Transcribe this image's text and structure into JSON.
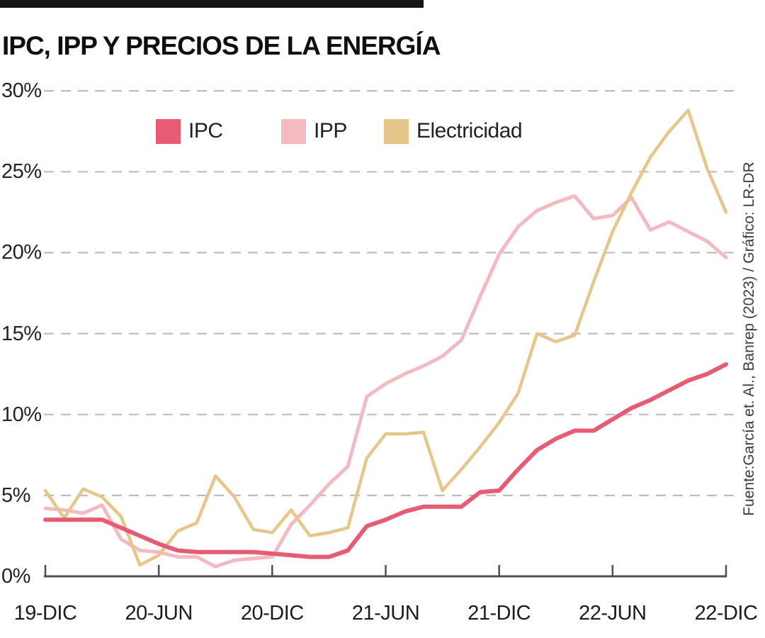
{
  "header": {
    "title": "IPC, IPP Y PRECIOS DE LA ENERGÍA"
  },
  "source_note": "Fuente:García et. Al., Banrep (2023) / Gráfico: LR-DR",
  "colors": {
    "top_bar": "#161616",
    "grid": "#bdbdbd",
    "axis": "#4f4f4f",
    "ipc": "#e65d73",
    "ipp": "#f3bac2",
    "electricidad": "#e7c689"
  },
  "chart_data": {
    "type": "line",
    "title": "IPC, IPP Y PRECIOS DE LA ENERGÍA",
    "unit": "%",
    "ylim": [
      0,
      30
    ],
    "grid": "horizontal-dashed",
    "legend_position": "top-inside",
    "y_axis_ticks": [
      "0%",
      "5%",
      "10%",
      "15%",
      "20%",
      "25%",
      "30%"
    ],
    "x_axis_ticks": [
      "19-DIC",
      "20-JUN",
      "20-DIC",
      "21-JUN",
      "21-DIC",
      "22-JUN",
      "22-DIC"
    ],
    "x": [
      "dic-19",
      "ene-20",
      "feb-20",
      "mar-20",
      "abr-20",
      "may-20",
      "jun-20",
      "jul-20",
      "ago-20",
      "sep-20",
      "oct-20",
      "nov-20",
      "dic-20",
      "ene-21",
      "feb-21",
      "mar-21",
      "abr-21",
      "may-21",
      "jun-21",
      "jul-21",
      "ago-21",
      "sep-21",
      "oct-21",
      "nov-21",
      "dic-21",
      "ene-22",
      "feb-22",
      "mar-22",
      "abr-22",
      "may-22",
      "jun-22",
      "jul-22",
      "ago-22",
      "sep-22",
      "oct-22",
      "nov-22",
      "dic-22"
    ],
    "series": [
      {
        "name": "IPC",
        "color": "#e65d73",
        "values": [
          3.5,
          3.5,
          3.5,
          3.5,
          3.0,
          2.5,
          2.0,
          1.6,
          1.5,
          1.5,
          1.5,
          1.5,
          1.4,
          1.3,
          1.2,
          1.2,
          1.6,
          3.1,
          3.5,
          4.0,
          4.3,
          4.3,
          4.3,
          5.2,
          5.3,
          6.6,
          7.8,
          8.5,
          9.0,
          9.0,
          9.7,
          10.4,
          10.9,
          11.5,
          12.1,
          12.5,
          13.1
        ]
      },
      {
        "name": "IPP",
        "color": "#f3bac2",
        "values": [
          4.2,
          4.1,
          3.9,
          4.4,
          2.3,
          1.6,
          1.5,
          1.2,
          1.2,
          0.6,
          1.0,
          1.1,
          1.2,
          3.2,
          4.4,
          5.7,
          6.8,
          11.1,
          11.9,
          12.5,
          13.0,
          13.6,
          14.6,
          17.3,
          19.9,
          21.6,
          22.6,
          23.1,
          23.5,
          22.1,
          22.3,
          23.4,
          21.4,
          21.9,
          21.3,
          20.7,
          19.7
        ]
      },
      {
        "name": "Electricidad",
        "color": "#e7c689",
        "values": [
          5.3,
          3.6,
          5.4,
          4.9,
          3.7,
          0.7,
          1.3,
          2.8,
          3.3,
          6.2,
          4.9,
          2.9,
          2.7,
          4.1,
          2.5,
          2.7,
          3.0,
          7.3,
          8.8,
          8.8,
          8.9,
          5.3,
          6.6,
          8.0,
          9.5,
          11.3,
          15.0,
          14.5,
          14.9,
          18.2,
          21.3,
          23.7,
          25.9,
          27.5,
          28.8,
          25.2,
          22.5
        ]
      }
    ]
  }
}
